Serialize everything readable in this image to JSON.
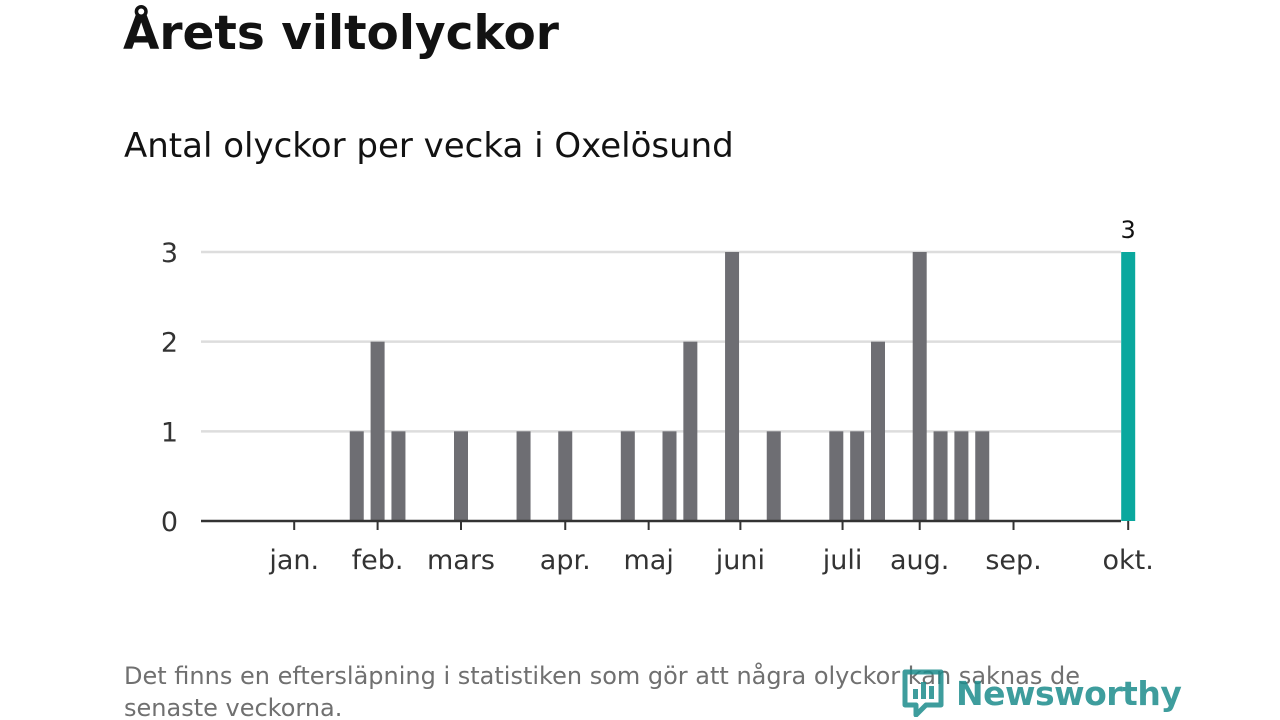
{
  "title": "Årets viltolyckor",
  "subtitle": "Antal olyckor per vecka i Oxelösund",
  "footnote": "Det finns en eftersläpning i statistiken som gör att några olyckor kan saknas de senaste veckorna.",
  "brand": {
    "name": "Newsworthy",
    "icon": "newsworthy-logo-icon"
  },
  "colors": {
    "bar": "#6e6e73",
    "highlight": "#0aa89e",
    "grid": "#dddddd",
    "axis": "#333333",
    "brand": "#1d8c8c"
  },
  "chart_data": {
    "type": "bar",
    "title": "Antal olyckor per vecka i Oxelösund",
    "xlabel": "",
    "ylabel": "",
    "ylim": [
      0,
      3
    ],
    "yticks": [
      0,
      1,
      2,
      3
    ],
    "grid": true,
    "x": [
      1,
      2,
      3,
      4,
      5,
      6,
      7,
      8,
      9,
      10,
      11,
      12,
      13,
      14,
      15,
      16,
      17,
      18,
      19,
      20,
      21,
      22,
      23,
      24,
      25,
      26,
      27,
      28,
      29,
      30,
      31,
      32,
      33,
      34,
      35,
      36,
      37,
      38,
      39,
      40,
      41,
      42,
      43
    ],
    "xlabel_unit": "vecka",
    "values": [
      0,
      0,
      0,
      0,
      0,
      1,
      2,
      1,
      0,
      0,
      1,
      0,
      0,
      1,
      0,
      1,
      0,
      0,
      1,
      0,
      1,
      2,
      0,
      3,
      0,
      1,
      0,
      0,
      1,
      1,
      2,
      0,
      3,
      1,
      1,
      1,
      0,
      0,
      0,
      0,
      0,
      0,
      3
    ],
    "highlight_index": 42,
    "highlight_label": "3",
    "month_ticks": [
      {
        "label": "jan.",
        "x": 3
      },
      {
        "label": "feb.",
        "x": 7
      },
      {
        "label": "mars",
        "x": 11
      },
      {
        "label": "apr.",
        "x": 16
      },
      {
        "label": "maj",
        "x": 20
      },
      {
        "label": "juni",
        "x": 24.4
      },
      {
        "label": "juli",
        "x": 29.3
      },
      {
        "label": "aug.",
        "x": 33
      },
      {
        "label": "sep.",
        "x": 37.5
      },
      {
        "label": "okt.",
        "x": 43
      }
    ]
  }
}
